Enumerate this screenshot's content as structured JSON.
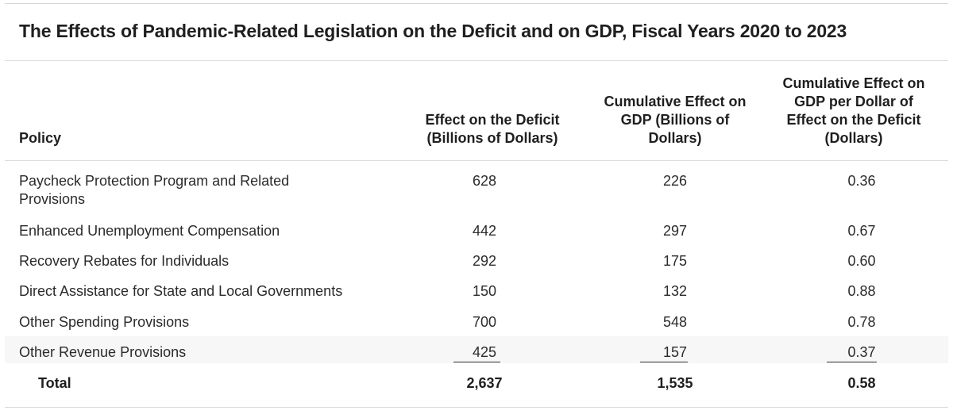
{
  "title": "The Effects of Pandemic-Related Legislation on the Deficit and on GDP, Fiscal Years 2020 to 2023",
  "chart_data": {
    "type": "table",
    "title": "The Effects of Pandemic-Related Legislation on the Deficit and on GDP, Fiscal Years 2020 to 2023",
    "columns": [
      [
        "Policy"
      ],
      [
        "Effect on the Deficit",
        "(Billions of Dollars)"
      ],
      [
        "Cumulative Effect on",
        "GDP (Billions of",
        "Dollars)"
      ],
      [
        "Cumulative Effect on",
        "GDP per Dollar of",
        "Effect on the Deficit",
        "(Dollars)"
      ]
    ],
    "rows": [
      {
        "policy": [
          "Paycheck Protection Program and Related",
          "Provisions"
        ],
        "deficit": "628",
        "gdp": "226",
        "per_dollar": "0.36"
      },
      {
        "policy": [
          "Enhanced Unemployment Compensation"
        ],
        "deficit": "442",
        "gdp": "297",
        "per_dollar": "0.67"
      },
      {
        "policy": [
          "Recovery Rebates for Individuals"
        ],
        "deficit": "292",
        "gdp": "175",
        "per_dollar": "0.60"
      },
      {
        "policy": [
          "Direct Assistance for State and Local Governments"
        ],
        "deficit": "150",
        "gdp": "132",
        "per_dollar": "0.88"
      },
      {
        "policy": [
          "Other Spending Provisions"
        ],
        "deficit": "700",
        "gdp": "548",
        "per_dollar": "0.78"
      },
      {
        "policy": [
          "Other Revenue Provisions"
        ],
        "deficit": "425",
        "gdp": "157",
        "per_dollar": "0.37"
      }
    ],
    "total": {
      "policy": "Total",
      "deficit": "2,637",
      "gdp": "1,535",
      "per_dollar": "0.58"
    }
  }
}
